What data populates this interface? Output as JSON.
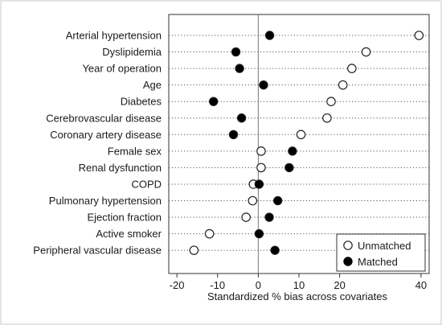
{
  "chart_data": {
    "type": "scatter",
    "title": "",
    "xlabel": "Standardized % bias across covariates",
    "ylabel": "",
    "xlim": [
      -22,
      42
    ],
    "xticks": [
      -20,
      -10,
      0,
      10,
      20,
      40
    ],
    "xtick_labels": [
      "-20",
      "-10",
      "0",
      "10",
      "20",
      "40"
    ],
    "grid": "dotted horizontal lines per covariate",
    "reference_line": 0,
    "legend_position": "bottom-right",
    "categories": [
      "Arterial hypertension",
      "Dyslipidemia",
      "Year of operation",
      "Age",
      "Diabetes",
      "Cerebrovascular disease",
      "Coronary artery disease",
      "Female sex",
      "Renal dysfunction",
      "COPD",
      "Pulmonary hypertension",
      "Ejection fraction",
      "Active smoker",
      "Peripheral vascular disease"
    ],
    "series": [
      {
        "name": "Unmatched",
        "marker": "hollow-circle",
        "values": [
          39.5,
          26.5,
          23.0,
          20.8,
          17.9,
          16.9,
          10.5,
          0.7,
          0.7,
          -1.2,
          -1.4,
          -3.0,
          -12.0,
          -15.8
        ]
      },
      {
        "name": "Matched",
        "marker": "filled-circle",
        "values": [
          2.8,
          -5.5,
          -4.6,
          1.3,
          -11.0,
          -4.1,
          -6.1,
          8.4,
          7.6,
          0.2,
          4.8,
          2.7,
          0.2,
          4.1
        ]
      }
    ]
  },
  "colors": {
    "frame": "#333333",
    "grid": "#555555",
    "marker_fill_matched": "#000000",
    "marker_fill_unmatched": "#ffffff",
    "marker_stroke": "#222222"
  }
}
